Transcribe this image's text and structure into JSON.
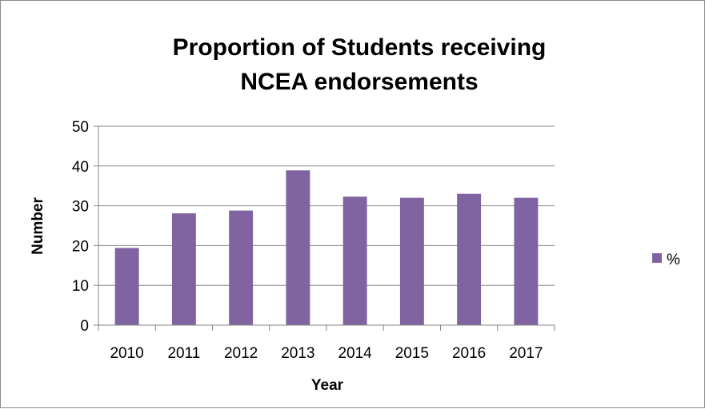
{
  "chart_data": {
    "type": "bar",
    "title": [
      "Proportion of Students receiving",
      "NCEA endorsements"
    ],
    "xlabel": "Year",
    "ylabel": "Number",
    "categories": [
      "2010",
      "2011",
      "2012",
      "2013",
      "2014",
      "2015",
      "2016",
      "2017"
    ],
    "series": [
      {
        "name": "%",
        "values": [
          19.4,
          28.1,
          28.8,
          38.9,
          32.3,
          32.0,
          33.0,
          32.0
        ]
      }
    ],
    "ylim": [
      0,
      50
    ],
    "yticks": [
      "0",
      "10",
      "20",
      "30",
      "40",
      "50"
    ],
    "grid": "horizontal",
    "legend_position": "right",
    "colors": {
      "bar": "#8064a2",
      "grid": "#878787",
      "axis": "#878787"
    }
  }
}
